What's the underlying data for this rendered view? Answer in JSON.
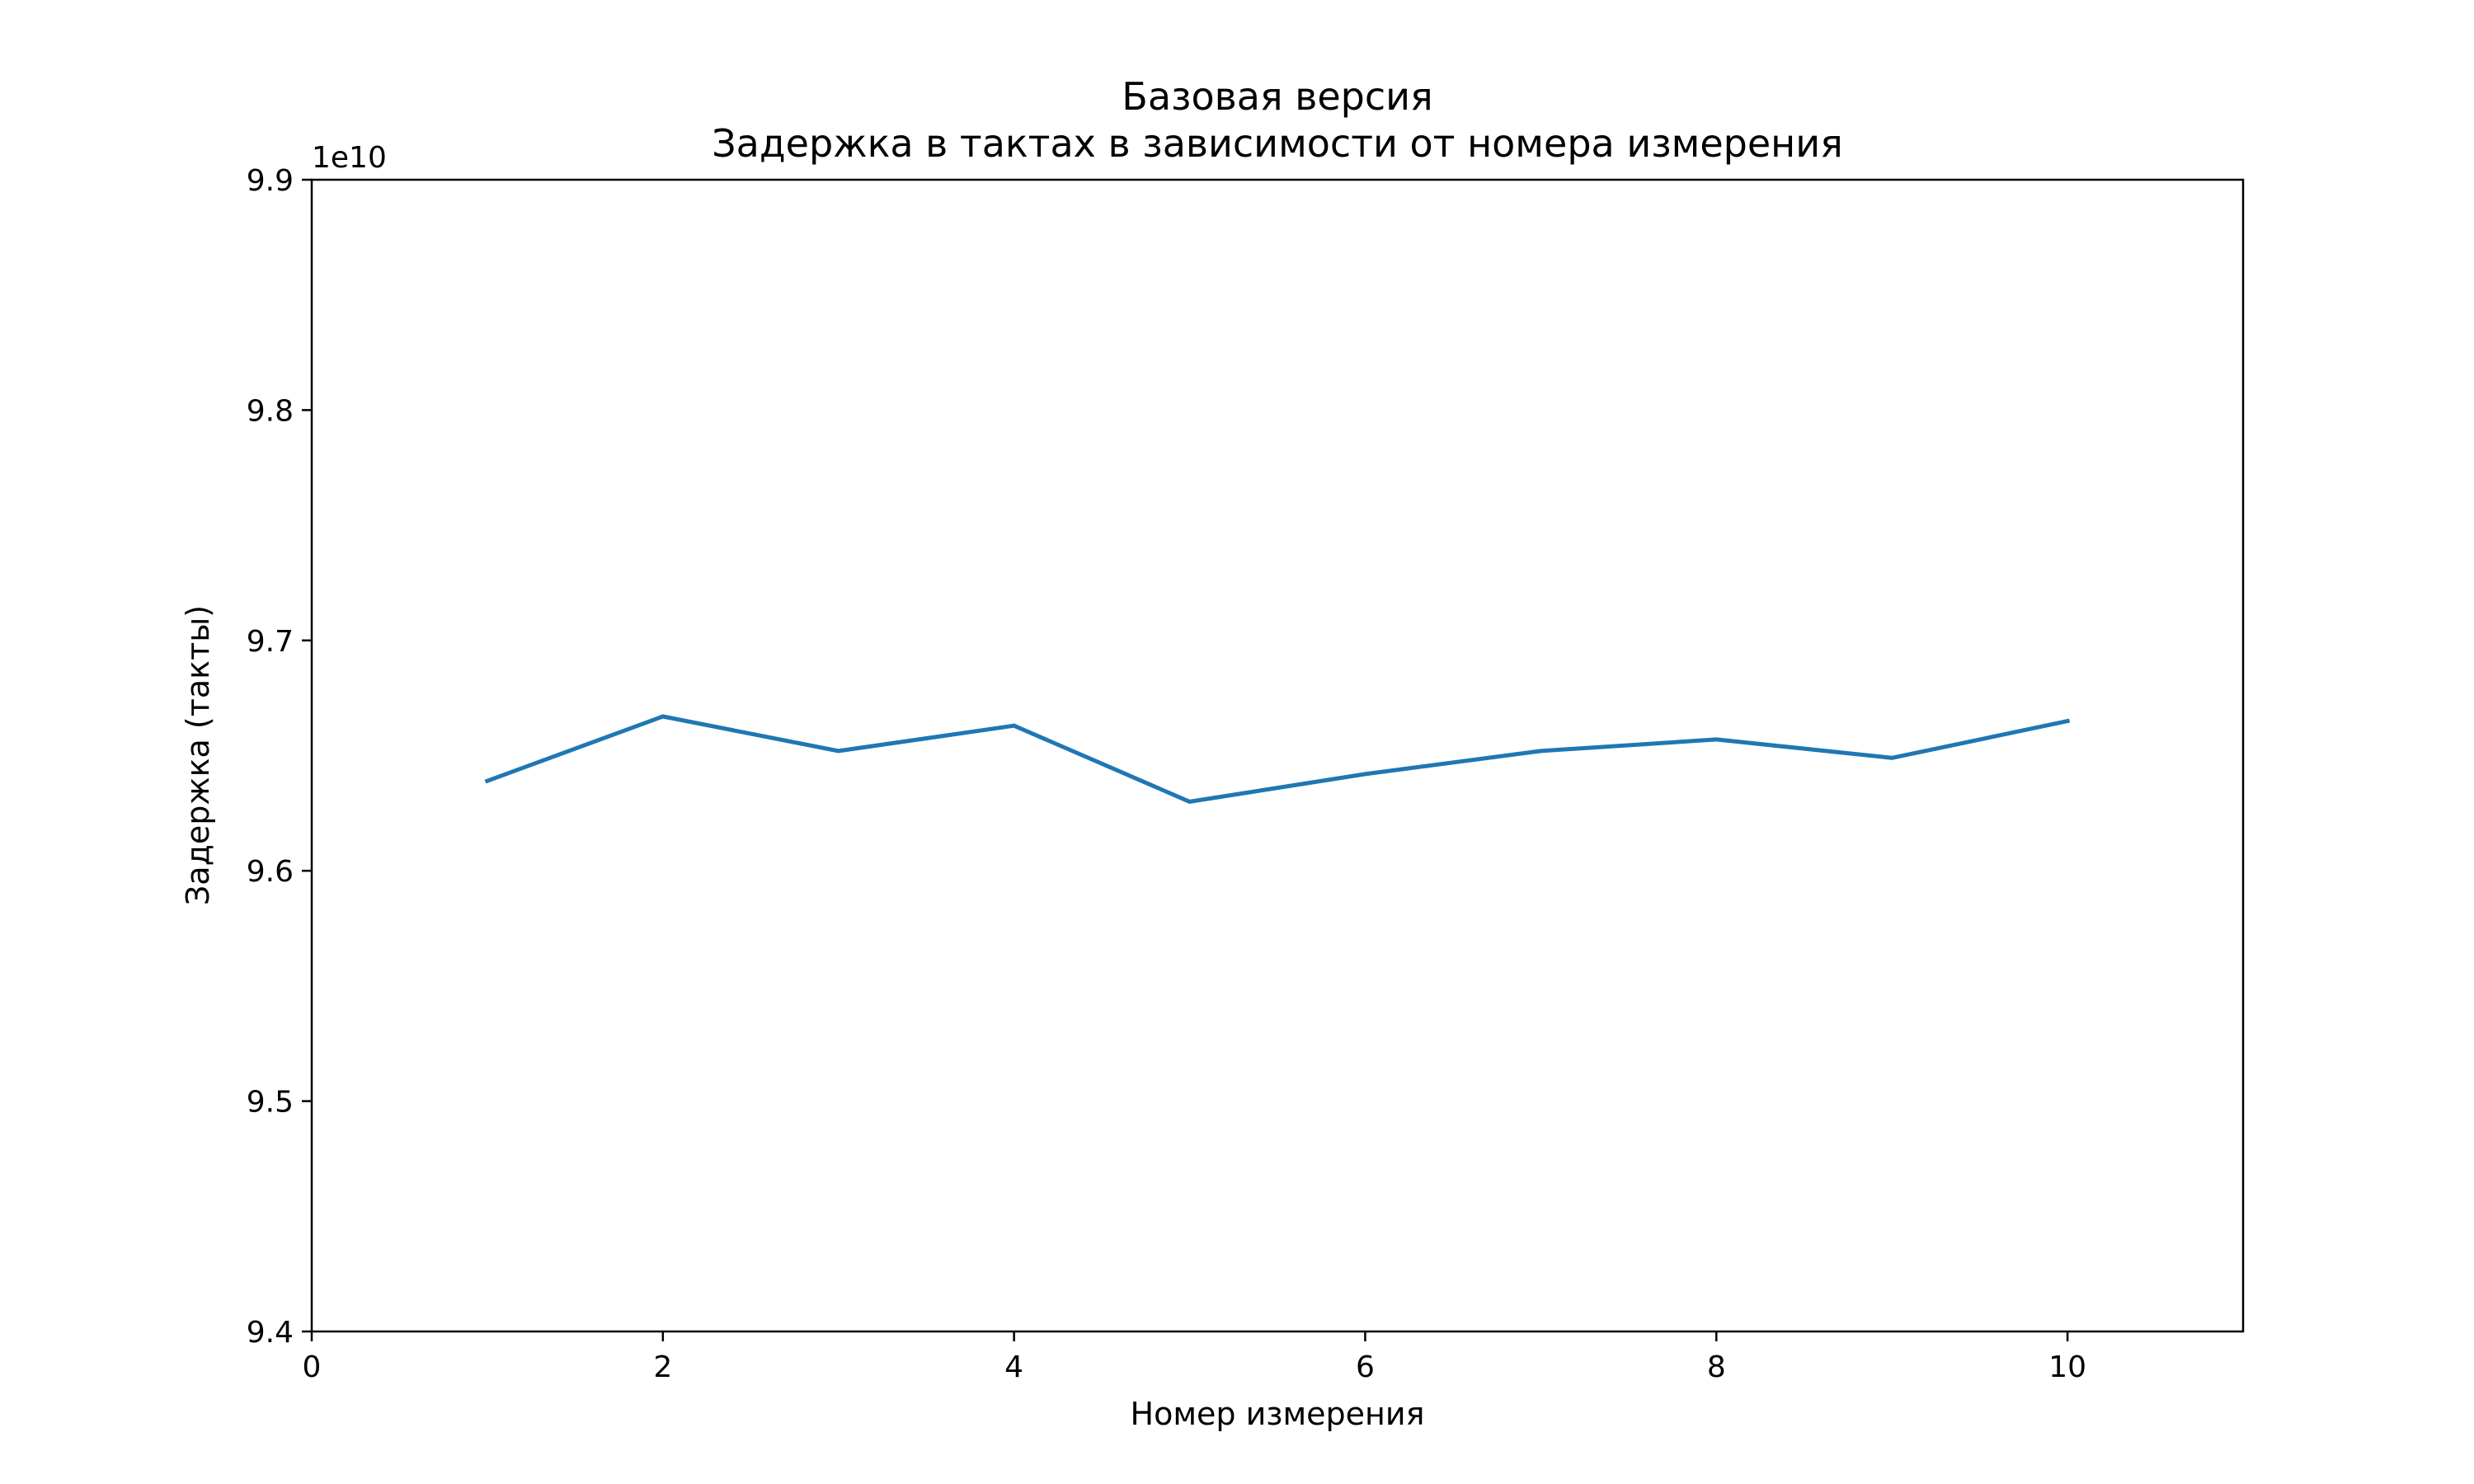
{
  "chart_data": {
    "type": "line",
    "title": "Базовая версия",
    "subtitle": "Задержка в тактах в зависимости от номера измерения",
    "xlabel": "Номер измерения",
    "ylabel": "Задержка (такты)",
    "offset_label": "1e10",
    "xlim": [
      0,
      11
    ],
    "ylim": [
      9.4,
      9.9
    ],
    "x_ticks": [
      0,
      2,
      4,
      6,
      8,
      10
    ],
    "x_tick_labels": [
      "0",
      "2",
      "4",
      "6",
      "8",
      "10"
    ],
    "y_ticks": [
      9.4,
      9.5,
      9.6,
      9.7,
      9.8,
      9.9
    ],
    "y_tick_labels": [
      "9.4",
      "9.5",
      "9.6",
      "9.7",
      "9.8",
      "9.9"
    ],
    "grid": false,
    "legend": "none",
    "series": [
      {
        "color": "#1f77b4",
        "x": [
          1,
          2,
          3,
          4,
          5,
          6,
          7,
          8,
          9,
          10
        ],
        "y": [
          9.639,
          9.667,
          9.652,
          9.663,
          9.63,
          9.642,
          9.652,
          9.657,
          9.649,
          9.665
        ]
      }
    ]
  }
}
